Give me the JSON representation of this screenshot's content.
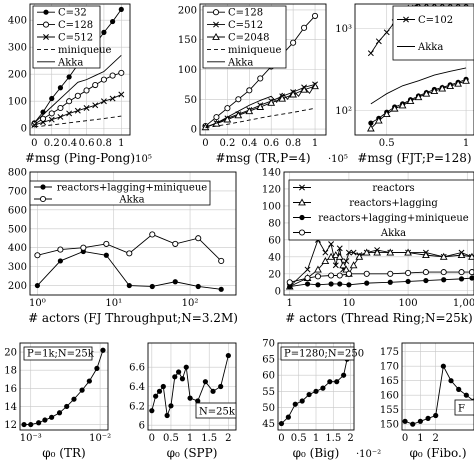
{
  "chart_data": [
    {
      "type": "line",
      "xlabel": "#msg (Ping-Pong)",
      "x_multiplier": "·10⁵",
      "xlim": [
        -0.05,
        1.1
      ],
      "ylim": [
        -25,
        460
      ],
      "xticks": [
        0,
        0.2,
        0.4,
        0.6,
        0.8,
        1
      ],
      "xtick_labels": [
        "0",
        "0.2",
        "0.4",
        "0.6",
        "0.8",
        "1"
      ],
      "yticks": [
        0,
        100,
        200,
        300,
        400
      ],
      "ytick_labels": [
        "0",
        "100",
        "200",
        "300",
        "400"
      ],
      "legend": "top-left",
      "series": [
        {
          "name": "C=32",
          "marker": "dot",
          "dash": "",
          "x": [
            0,
            0.1,
            0.2,
            0.3,
            0.4,
            0.5,
            0.6,
            0.7,
            0.8,
            0.9,
            1.0
          ],
          "y": [
            20,
            60,
            110,
            150,
            190,
            235,
            270,
            310,
            355,
            395,
            440
          ]
        },
        {
          "name": "C=128",
          "marker": "circle",
          "dash": "",
          "x": [
            0,
            0.1,
            0.2,
            0.3,
            0.4,
            0.5,
            0.6,
            0.7,
            0.8,
            0.9,
            1.0
          ],
          "y": [
            15,
            35,
            55,
            75,
            100,
            120,
            140,
            160,
            180,
            195,
            205
          ]
        },
        {
          "name": "C=512",
          "marker": "x",
          "dash": "",
          "x": [
            0,
            0.1,
            0.2,
            0.3,
            0.4,
            0.5,
            0.6,
            0.7,
            0.8,
            0.9,
            1.0
          ],
          "y": [
            12,
            22,
            32,
            42,
            55,
            65,
            75,
            85,
            100,
            110,
            125
          ]
        },
        {
          "name": "miniqueue",
          "marker": "",
          "dash": "4,3",
          "x": [
            0,
            0.2,
            0.4,
            0.6,
            0.8,
            1.0
          ],
          "y": [
            5,
            12,
            20,
            28,
            36,
            45
          ]
        },
        {
          "name": "Akka",
          "marker": "",
          "dash": "",
          "x": [
            0,
            0.1,
            0.2,
            0.3,
            0.4,
            0.5,
            0.6,
            0.7,
            0.8,
            0.9,
            1.0
          ],
          "y": [
            20,
            50,
            80,
            110,
            140,
            170,
            180,
            195,
            210,
            240,
            270
          ]
        }
      ]
    },
    {
      "type": "line",
      "xlabel": "#msg (TR,P=4)",
      "x_multiplier": "·10⁵",
      "xlim": [
        -0.05,
        1.1
      ],
      "ylim": [
        -10,
        210
      ],
      "xticks": [
        0,
        0.2,
        0.4,
        0.6,
        0.8,
        1
      ],
      "xtick_labels": [
        "0",
        "0.2",
        "0.4",
        "0.6",
        "0.8",
        "1"
      ],
      "yticks": [
        0,
        50,
        100,
        150,
        200
      ],
      "ytick_labels": [
        "0",
        "50",
        "100",
        "150",
        "200"
      ],
      "legend": "top-left",
      "series": [
        {
          "name": "C=128",
          "marker": "circle",
          "dash": "",
          "x": [
            0,
            0.1,
            0.2,
            0.3,
            0.4,
            0.5,
            0.6,
            0.7,
            0.8,
            0.9,
            1.0
          ],
          "y": [
            5,
            20,
            35,
            50,
            65,
            85,
            105,
            125,
            145,
            170,
            190
          ]
        },
        {
          "name": "C=512",
          "marker": "x",
          "dash": "",
          "x": [
            0,
            0.1,
            0.2,
            0.3,
            0.4,
            0.5,
            0.6,
            0.7,
            0.8,
            0.9,
            1.0
          ],
          "y": [
            3,
            10,
            18,
            25,
            32,
            40,
            47,
            55,
            62,
            70,
            75
          ]
        },
        {
          "name": "C=2048",
          "marker": "triangle",
          "dash": "",
          "x": [
            0,
            0.1,
            0.2,
            0.3,
            0.4,
            0.5,
            0.6,
            0.7,
            0.8,
            0.9,
            1.0
          ],
          "y": [
            3,
            9,
            16,
            23,
            30,
            37,
            44,
            51,
            58,
            66,
            72
          ]
        },
        {
          "name": "miniqueue",
          "marker": "",
          "dash": "4,3",
          "x": [
            0,
            0.2,
            0.4,
            0.6,
            0.8,
            1.0
          ],
          "y": [
            2,
            8,
            15,
            22,
            28,
            35
          ]
        },
        {
          "name": "Akka",
          "marker": "",
          "dash": "",
          "x": [
            0,
            0.1,
            0.2,
            0.3,
            0.4,
            0.5,
            0.6,
            0.65,
            0.7,
            0.75,
            0.8,
            0.85,
            0.9,
            0.95,
            1.0
          ],
          "y": [
            3,
            10,
            20,
            30,
            40,
            48,
            55,
            45,
            60,
            50,
            65,
            55,
            70,
            60,
            75
          ]
        }
      ]
    },
    {
      "type": "line",
      "xlabel": "#msg (FJT;P=128)",
      "x_multiplier": "·10",
      "yscale": "log",
      "xlim": [
        0.3,
        1.05
      ],
      "ylim": [
        50,
        2000
      ],
      "xticks": [
        0.5,
        1
      ],
      "xtick_labels": [
        "0.5",
        "1"
      ],
      "yticks": [
        100,
        1000
      ],
      "ytick_labels": [
        "10²",
        "10³"
      ],
      "legend": "top-right",
      "series": [
        {
          "name": "C=102",
          "marker": "x",
          "dash": "",
          "x": [
            0.4,
            0.45,
            0.5,
            0.55,
            0.6,
            0.65,
            0.7,
            0.75,
            0.8,
            0.85,
            0.9,
            0.95,
            1.0
          ],
          "y": [
            500,
            700,
            900,
            1200,
            1500,
            1800,
            2000,
            2000,
            2000,
            2000,
            2000,
            2000,
            2000
          ]
        },
        {
          "name": "",
          "marker": "dot",
          "dash": "",
          "x": [
            0.4,
            0.45,
            0.5,
            0.55,
            0.6,
            0.65,
            0.7,
            0.75,
            0.8,
            0.85,
            0.9,
            0.95,
            1.0
          ],
          "y": [
            70,
            80,
            95,
            110,
            120,
            135,
            150,
            165,
            180,
            190,
            205,
            220,
            240
          ]
        },
        {
          "name": "",
          "marker": "triangle",
          "dash": "",
          "x": [
            0.4,
            0.45,
            0.5,
            0.55,
            0.6,
            0.65,
            0.7,
            0.75,
            0.8,
            0.85,
            0.9,
            0.95,
            1.0
          ],
          "y": [
            60,
            75,
            90,
            105,
            115,
            130,
            145,
            160,
            172,
            185,
            198,
            212,
            230
          ]
        },
        {
          "name": "Akka",
          "marker": "",
          "dash": "",
          "x": [
            0.4,
            0.5,
            0.6,
            0.7,
            0.8,
            0.9,
            1.0
          ],
          "y": [
            120,
            160,
            200,
            230,
            270,
            300,
            330
          ]
        }
      ]
    },
    {
      "type": "line",
      "xlabel": "# actors (FJ Throughput;N=3.2M)",
      "xscale": "log",
      "xlim": [
        0.8,
        400
      ],
      "ylim": [
        150,
        800
      ],
      "xticks": [
        1,
        10,
        100
      ],
      "xtick_labels": [
        "10⁰",
        "10¹",
        "10²"
      ],
      "yticks": [
        200,
        300,
        400,
        500,
        600,
        700,
        800
      ],
      "ytick_labels": [
        "200",
        "300",
        "400",
        "500",
        "600",
        "700",
        "800"
      ],
      "legend": "top-right",
      "series": [
        {
          "name": "reactors+lagging+miniqueue",
          "marker": "dot",
          "dash": "",
          "x": [
            1,
            2,
            4,
            8,
            16,
            32,
            64,
            128,
            256
          ],
          "y": [
            200,
            330,
            380,
            360,
            200,
            195,
            220,
            195,
            180
          ]
        },
        {
          "name": "Akka",
          "marker": "circle",
          "dash": "",
          "x": [
            1,
            2,
            4,
            8,
            16,
            32,
            64,
            128,
            256
          ],
          "y": [
            360,
            390,
            400,
            420,
            370,
            470,
            420,
            450,
            330
          ]
        }
      ]
    },
    {
      "type": "line",
      "xlabel": "# actors (Thread Ring;N=25k)",
      "xscale": "log",
      "xlim": [
        0.8,
        1300
      ],
      "ylim": [
        -5,
        140
      ],
      "xticks": [
        1,
        10,
        100,
        1000
      ],
      "xtick_labels": [
        "1",
        "10",
        "100",
        "1,000"
      ],
      "yticks": [
        0,
        20,
        40,
        60,
        80,
        100,
        120,
        140
      ],
      "ytick_labels": [
        "0",
        "20",
        "40",
        "60",
        "80",
        "100",
        "120",
        "140"
      ],
      "legend": "top-right",
      "series": [
        {
          "name": "reactors",
          "marker": "x",
          "dash": "",
          "x": [
            1,
            2,
            3,
            4,
            5,
            6,
            7,
            8,
            9,
            10,
            12,
            15,
            20,
            30,
            50,
            100,
            200,
            400,
            800,
            1200
          ],
          "y": [
            5,
            25,
            60,
            45,
            55,
            30,
            50,
            25,
            35,
            45,
            45,
            42,
            45,
            48,
            45,
            45,
            45,
            40,
            45,
            40
          ]
        },
        {
          "name": "reactors+lagging",
          "marker": "triangle",
          "dash": "",
          "x": [
            1,
            2,
            3,
            4,
            5,
            6,
            7,
            8,
            9,
            10,
            12,
            15,
            20,
            30,
            50,
            100,
            200,
            400,
            800,
            1200
          ],
          "y": [
            5,
            15,
            25,
            35,
            40,
            42,
            40,
            30,
            25,
            20,
            30,
            40,
            45,
            45,
            45,
            45,
            42,
            40,
            42,
            40
          ]
        },
        {
          "name": "reactors+lagging+miniqueue",
          "marker": "dot",
          "dash": "",
          "x": [
            1,
            2,
            3,
            5,
            7,
            10,
            20,
            50,
            100,
            200,
            400,
            800,
            1200
          ],
          "y": [
            5,
            8,
            7,
            8,
            8,
            7,
            9,
            10,
            11,
            12,
            13,
            14,
            15
          ]
        },
        {
          "name": "Akka",
          "marker": "circle",
          "dash": "",
          "x": [
            1,
            2,
            3,
            5,
            7,
            10,
            20,
            50,
            100,
            200,
            400,
            800,
            1200
          ],
          "y": [
            10,
            15,
            17,
            18,
            18,
            20,
            20,
            20,
            21,
            22,
            22,
            22,
            22
          ]
        }
      ]
    },
    {
      "type": "line",
      "xlabel": "φ₀ (TR)",
      "xscale": "log",
      "annotation": "P=1k;N=25k",
      "xlim": [
        0.0007,
        0.013
      ],
      "ylim": [
        11.4,
        21
      ],
      "xticks": [
        0.001,
        0.01
      ],
      "xtick_labels": [
        "10⁻³",
        "10⁻²"
      ],
      "yticks": [
        12,
        14,
        16,
        18,
        20
      ],
      "ytick_labels": [
        "12",
        "14",
        "16",
        "18",
        "20"
      ],
      "series": [
        {
          "name": "",
          "marker": "dot",
          "dash": "",
          "x": [
            0.0008,
            0.001,
            0.0013,
            0.0016,
            0.002,
            0.0026,
            0.0033,
            0.0042,
            0.0055,
            0.007,
            0.009,
            0.011
          ],
          "y": [
            12,
            12,
            12.2,
            12.5,
            12.8,
            13.3,
            14,
            14.8,
            15.8,
            16.8,
            18.2,
            20.2
          ]
        }
      ]
    },
    {
      "type": "line",
      "xlabel": "φ₀ (SPP)",
      "annotation": "N=25k",
      "xlim": [
        -0.1,
        2.2
      ],
      "ylim": [
        5.95,
        6.85
      ],
      "xticks": [
        0,
        0.5,
        1,
        1.5,
        2
      ],
      "xtick_labels": [
        "0",
        "0.5",
        "1",
        "1.5",
        "2"
      ],
      "yticks": [
        6,
        6.2,
        6.4,
        6.6
      ],
      "ytick_labels": [
        "6",
        "6.2",
        "6.4",
        "6.6"
      ],
      "series": [
        {
          "name": "",
          "marker": "dot",
          "dash": "",
          "x": [
            0,
            0.1,
            0.2,
            0.3,
            0.4,
            0.5,
            0.6,
            0.7,
            0.8,
            0.9,
            1.0,
            1.2,
            1.4,
            1.6,
            1.8,
            2.0
          ],
          "y": [
            6.15,
            6.3,
            6.35,
            6.4,
            6.1,
            6.2,
            6.5,
            6.55,
            6.48,
            6.6,
            6.28,
            6.25,
            6.45,
            6.35,
            6.4,
            6.72
          ]
        }
      ]
    },
    {
      "type": "line",
      "xlabel": "φ₀ (Big)",
      "x_multiplier": "·10⁻²",
      "annotation": "P=1280;N=250",
      "xlim": [
        -0.1,
        2.1
      ],
      "ylim": [
        43,
        70
      ],
      "xticks": [
        0,
        0.5,
        1,
        1.5,
        2
      ],
      "xtick_labels": [
        "0",
        "0.5",
        "1",
        "1.5",
        "2"
      ],
      "yticks": [
        45,
        50,
        55,
        60,
        65,
        70
      ],
      "ytick_labels": [
        "45",
        "50",
        "55",
        "60",
        "65",
        "70"
      ],
      "series": [
        {
          "name": "",
          "marker": "dot",
          "dash": "",
          "x": [
            0,
            0.2,
            0.4,
            0.6,
            0.8,
            1.0,
            1.2,
            1.4,
            1.6,
            1.8,
            1.9,
            2.0
          ],
          "y": [
            45,
            47,
            51,
            52,
            54,
            55,
            56,
            58,
            58,
            60,
            65,
            68
          ]
        }
      ]
    },
    {
      "type": "line",
      "xlabel": "φ₀ (Fibo.)",
      "annotation": "F",
      "xlim": [
        -0.2,
        4.5
      ],
      "ylim": [
        148,
        178
      ],
      "xticks": [
        0,
        1,
        2
      ],
      "xtick_labels": [
        "0",
        "1",
        "2"
      ],
      "yticks": [
        150,
        155,
        160,
        165,
        170,
        175
      ],
      "ytick_labels": [
        "150",
        "155",
        "160",
        "165",
        "170",
        "175"
      ],
      "series": [
        {
          "name": "",
          "marker": "dot",
          "dash": "",
          "x": [
            0,
            0.5,
            1,
            1.5,
            2,
            2.5,
            3,
            3.5,
            4,
            4.5
          ],
          "y": [
            151,
            150,
            151,
            152,
            153,
            170,
            165,
            162,
            160,
            158
          ]
        }
      ]
    }
  ]
}
